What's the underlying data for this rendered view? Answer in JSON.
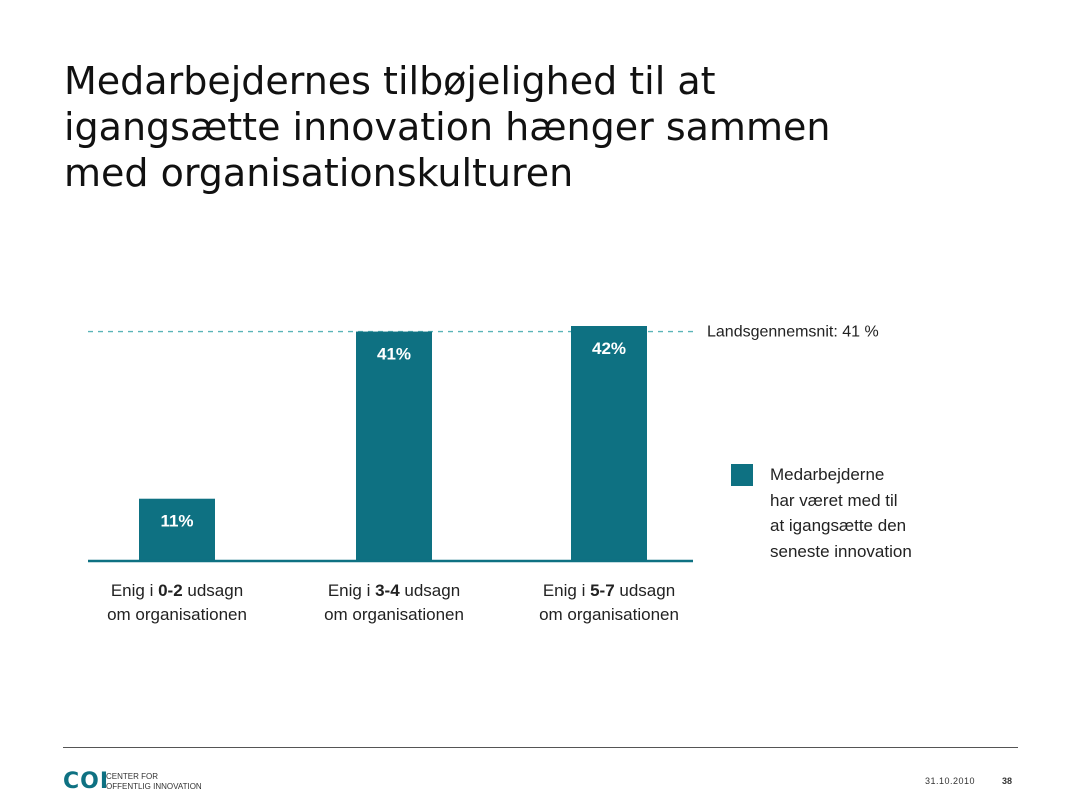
{
  "slide": {
    "title_lines": [
      "Medarbejdernes tilbøjelighed til at",
      "igangsætte innovation hænger sammen",
      "med organisationskulturen"
    ]
  },
  "chart_data": {
    "type": "bar",
    "title": "",
    "categories": [
      {
        "lines": [
          [
            {
              "t": "Enig i ",
              "b": false
            },
            {
              "t": "0-2",
              "b": true
            },
            {
              "t": " udsagn",
              "b": false
            }
          ],
          [
            {
              "t": "om organisationen",
              "b": false
            }
          ]
        ]
      },
      {
        "lines": [
          [
            {
              "t": "Enig i ",
              "b": false
            },
            {
              "t": "3-4",
              "b": true
            },
            {
              "t": " udsagn",
              "b": false
            }
          ],
          [
            {
              "t": "om organisationen",
              "b": false
            }
          ]
        ]
      },
      {
        "lines": [
          [
            {
              "t": "Enig i ",
              "b": false
            },
            {
              "t": "5-7",
              "b": true
            },
            {
              "t": " udsagn",
              "b": false
            }
          ],
          [
            {
              "t": "om organisationen",
              "b": false
            }
          ]
        ]
      }
    ],
    "values": [
      11,
      41,
      42
    ],
    "value_labels": [
      "11%",
      "41%",
      "42%"
    ],
    "ylim": [
      0,
      42
    ],
    "reference_line": {
      "value": 41,
      "label": "Landsgennemsnit: 41 %"
    },
    "legend": {
      "lines": [
        "Medarbejderne",
        "har været med til",
        "at igangsætte den",
        "seneste innovation"
      ],
      "placement": "right"
    },
    "colors": {
      "bar": "#0e7182",
      "reference_line": "#5ab4b8",
      "axis": "#0e7182",
      "label": "#ffffff"
    },
    "grid": false
  },
  "footer": {
    "logo_mark": "COI",
    "logo_text_lines": [
      "Center for",
      "offentlig innovation"
    ],
    "date": "31.10.2010",
    "page": "38"
  }
}
